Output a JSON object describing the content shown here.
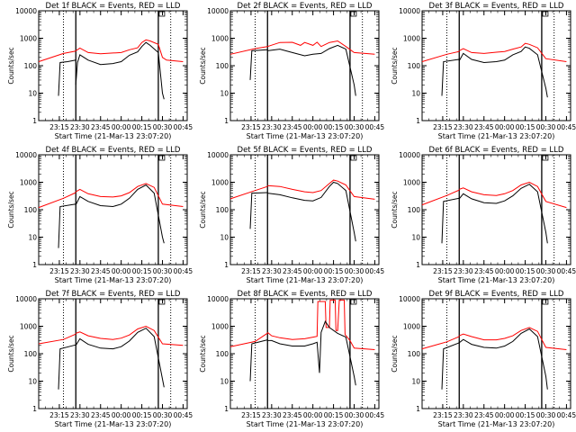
{
  "chart_data": {
    "type": "line",
    "x_ticks": [
      "23:15",
      "23:30",
      "23:45",
      "00:00",
      "00:15",
      "00:30",
      "00:45"
    ],
    "y_ticks": [
      "1",
      "10",
      "100",
      "1000",
      "10000"
    ],
    "ylabel": "Counts/sec",
    "xlabel": "Start Time (21-Mar-13 23:07:20)",
    "ylim": [
      1,
      10000
    ],
    "y_scale": "log",
    "panels": [
      {
        "title": "Det 1f BLACK = Events, RED = LLD",
        "red_series": [
          [
            23.45,
            350
          ],
          [
            23.5,
            440
          ],
          [
            23.6,
            300
          ],
          [
            23.75,
            270
          ],
          [
            23.9,
            290
          ],
          [
            24.0,
            300
          ],
          [
            24.1,
            380
          ],
          [
            24.2,
            450
          ],
          [
            24.25,
            700
          ],
          [
            24.3,
            870
          ],
          [
            24.35,
            800
          ],
          [
            24.45,
            600
          ],
          [
            24.5,
            200
          ],
          [
            24.55,
            160
          ],
          [
            24.75,
            140
          ]
        ],
        "black_series": [
          [
            23.45,
            20
          ],
          [
            23.47,
            130
          ],
          [
            23.5,
            250
          ],
          [
            23.6,
            160
          ],
          [
            23.75,
            110
          ],
          [
            23.9,
            120
          ],
          [
            24.0,
            140
          ],
          [
            24.1,
            240
          ],
          [
            24.2,
            320
          ],
          [
            24.25,
            500
          ],
          [
            24.3,
            700
          ],
          [
            24.35,
            550
          ],
          [
            24.45,
            300
          ],
          [
            24.5,
            10
          ],
          [
            24.52,
            6
          ]
        ],
        "red_start": [
          [
            23.0,
            140
          ],
          [
            23.3,
            280
          ],
          [
            23.45,
            340
          ]
        ],
        "black_start": [
          [
            23.24,
            8
          ],
          [
            23.26,
            130
          ],
          [
            23.35,
            140
          ],
          [
            23.45,
            160
          ]
        ]
      },
      {
        "title": "Det 2f BLACK = Events, RED = LLD",
        "red_series": [
          [
            23.45,
            500
          ],
          [
            23.6,
            700
          ],
          [
            23.75,
            710
          ],
          [
            23.85,
            550
          ],
          [
            23.9,
            700
          ],
          [
            24.0,
            550
          ],
          [
            24.05,
            720
          ],
          [
            24.1,
            500
          ],
          [
            24.2,
            700
          ],
          [
            24.3,
            800
          ],
          [
            24.4,
            500
          ],
          [
            24.5,
            300
          ],
          [
            24.75,
            260
          ]
        ],
        "black_series": [
          [
            23.45,
            350
          ],
          [
            23.6,
            400
          ],
          [
            23.75,
            300
          ],
          [
            23.9,
            230
          ],
          [
            24.0,
            260
          ],
          [
            24.1,
            280
          ],
          [
            24.2,
            420
          ],
          [
            24.3,
            550
          ],
          [
            24.4,
            400
          ],
          [
            24.5,
            20
          ],
          [
            24.52,
            8
          ]
        ],
        "red_start": [
          [
            23.0,
            260
          ],
          [
            23.3,
            420
          ],
          [
            23.45,
            500
          ]
        ],
        "black_start": [
          [
            23.24,
            30
          ],
          [
            23.26,
            350
          ],
          [
            23.45,
            380
          ]
        ]
      },
      {
        "title": "Det 3f BLACK = Events, RED = LLD",
        "red_series": [
          [
            23.45,
            350
          ],
          [
            23.5,
            420
          ],
          [
            23.6,
            300
          ],
          [
            23.75,
            280
          ],
          [
            23.9,
            310
          ],
          [
            24.0,
            330
          ],
          [
            24.1,
            400
          ],
          [
            24.2,
            480
          ],
          [
            24.25,
            650
          ],
          [
            24.3,
            600
          ],
          [
            24.4,
            450
          ],
          [
            24.5,
            180
          ],
          [
            24.75,
            140
          ]
        ],
        "black_series": [
          [
            23.45,
            150
          ],
          [
            23.5,
            280
          ],
          [
            23.6,
            170
          ],
          [
            23.75,
            130
          ],
          [
            23.9,
            140
          ],
          [
            24.0,
            160
          ],
          [
            24.1,
            250
          ],
          [
            24.2,
            330
          ],
          [
            24.25,
            480
          ],
          [
            24.3,
            430
          ],
          [
            24.4,
            250
          ],
          [
            24.5,
            15
          ],
          [
            24.52,
            7
          ]
        ],
        "red_start": [
          [
            23.0,
            140
          ],
          [
            23.3,
            260
          ],
          [
            23.45,
            330
          ]
        ],
        "black_start": [
          [
            23.24,
            8
          ],
          [
            23.26,
            140
          ],
          [
            23.45,
            170
          ]
        ]
      },
      {
        "title": "Det 4f BLACK = Events, RED = LLD",
        "red_series": [
          [
            23.45,
            450
          ],
          [
            23.5,
            550
          ],
          [
            23.6,
            380
          ],
          [
            23.75,
            300
          ],
          [
            23.9,
            290
          ],
          [
            24.0,
            320
          ],
          [
            24.1,
            420
          ],
          [
            24.2,
            700
          ],
          [
            24.3,
            900
          ],
          [
            24.4,
            650
          ],
          [
            24.5,
            160
          ],
          [
            24.75,
            130
          ]
        ],
        "black_series": [
          [
            23.45,
            150
          ],
          [
            23.5,
            300
          ],
          [
            23.6,
            200
          ],
          [
            23.75,
            140
          ],
          [
            23.9,
            130
          ],
          [
            24.0,
            160
          ],
          [
            24.1,
            260
          ],
          [
            24.2,
            550
          ],
          [
            24.3,
            800
          ],
          [
            24.4,
            400
          ],
          [
            24.5,
            10
          ],
          [
            24.52,
            6
          ]
        ],
        "red_start": [
          [
            23.0,
            120
          ],
          [
            23.3,
            260
          ],
          [
            23.45,
            420
          ]
        ],
        "black_start": [
          [
            23.24,
            4
          ],
          [
            23.26,
            130
          ],
          [
            23.45,
            160
          ]
        ]
      },
      {
        "title": "Det 5f BLACK = Events, RED = LLD",
        "red_series": [
          [
            23.45,
            750
          ],
          [
            23.6,
            700
          ],
          [
            23.75,
            550
          ],
          [
            23.9,
            450
          ],
          [
            24.0,
            420
          ],
          [
            24.1,
            500
          ],
          [
            24.2,
            900
          ],
          [
            24.25,
            1200
          ],
          [
            24.3,
            1100
          ],
          [
            24.4,
            800
          ],
          [
            24.5,
            300
          ],
          [
            24.75,
            240
          ]
        ],
        "black_series": [
          [
            23.45,
            400
          ],
          [
            23.6,
            350
          ],
          [
            23.75,
            270
          ],
          [
            23.9,
            220
          ],
          [
            24.0,
            210
          ],
          [
            24.1,
            280
          ],
          [
            24.2,
            700
          ],
          [
            24.25,
            1000
          ],
          [
            24.3,
            900
          ],
          [
            24.4,
            500
          ],
          [
            24.5,
            15
          ],
          [
            24.52,
            7
          ]
        ],
        "red_start": [
          [
            23.0,
            250
          ],
          [
            23.3,
            500
          ],
          [
            23.45,
            700
          ]
        ],
        "black_start": [
          [
            23.24,
            20
          ],
          [
            23.26,
            400
          ],
          [
            23.45,
            420
          ]
        ]
      },
      {
        "title": "Det 6f BLACK = Events, RED = LLD",
        "red_series": [
          [
            23.45,
            550
          ],
          [
            23.5,
            620
          ],
          [
            23.6,
            450
          ],
          [
            23.75,
            350
          ],
          [
            23.9,
            330
          ],
          [
            24.0,
            380
          ],
          [
            24.1,
            500
          ],
          [
            24.2,
            800
          ],
          [
            24.3,
            1000
          ],
          [
            24.4,
            700
          ],
          [
            24.5,
            200
          ],
          [
            24.75,
            120
          ]
        ],
        "black_series": [
          [
            23.45,
            250
          ],
          [
            23.5,
            380
          ],
          [
            23.6,
            250
          ],
          [
            23.75,
            180
          ],
          [
            23.9,
            170
          ],
          [
            24.0,
            210
          ],
          [
            24.1,
            320
          ],
          [
            24.2,
            600
          ],
          [
            24.3,
            850
          ],
          [
            24.4,
            450
          ],
          [
            24.5,
            15
          ],
          [
            24.52,
            6
          ]
        ],
        "red_start": [
          [
            23.0,
            150
          ],
          [
            23.3,
            330
          ],
          [
            23.45,
            520
          ]
        ],
        "black_start": [
          [
            23.24,
            6
          ],
          [
            23.26,
            200
          ],
          [
            23.45,
            260
          ]
        ]
      },
      {
        "title": "Det 7f BLACK = Events, RED = LLD",
        "red_series": [
          [
            23.45,
            550
          ],
          [
            23.5,
            620
          ],
          [
            23.6,
            450
          ],
          [
            23.75,
            360
          ],
          [
            23.9,
            330
          ],
          [
            24.0,
            370
          ],
          [
            24.1,
            480
          ],
          [
            24.2,
            800
          ],
          [
            24.3,
            1000
          ],
          [
            24.4,
            700
          ],
          [
            24.5,
            230
          ],
          [
            24.75,
            200
          ]
        ],
        "black_series": [
          [
            23.45,
            200
          ],
          [
            23.5,
            350
          ],
          [
            23.6,
            220
          ],
          [
            23.75,
            160
          ],
          [
            23.9,
            150
          ],
          [
            24.0,
            180
          ],
          [
            24.1,
            290
          ],
          [
            24.2,
            600
          ],
          [
            24.3,
            850
          ],
          [
            24.4,
            420
          ],
          [
            24.5,
            12
          ],
          [
            24.52,
            6
          ]
        ],
        "red_start": [
          [
            23.0,
            230
          ],
          [
            23.3,
            330
          ],
          [
            23.45,
            520
          ]
        ],
        "black_start": [
          [
            23.24,
            5
          ],
          [
            23.26,
            150
          ],
          [
            23.45,
            210
          ]
        ]
      },
      {
        "title": "Det 8f BLACK = Events, RED = LLD",
        "red_series": [
          [
            23.45,
            600
          ],
          [
            23.5,
            450
          ],
          [
            23.6,
            380
          ],
          [
            23.75,
            330
          ],
          [
            23.9,
            350
          ],
          [
            24.0,
            400
          ],
          [
            24.05,
            430
          ],
          [
            24.06,
            8000
          ],
          [
            24.15,
            8000
          ],
          [
            24.16,
            900
          ],
          [
            24.2,
            900
          ],
          [
            24.21,
            9000
          ],
          [
            24.27,
            9000
          ],
          [
            24.28,
            700
          ],
          [
            24.3,
            700
          ],
          [
            24.32,
            9000
          ],
          [
            24.38,
            9000
          ],
          [
            24.39,
            500
          ],
          [
            24.45,
            300
          ],
          [
            24.5,
            160
          ],
          [
            24.75,
            140
          ]
        ],
        "black_series": [
          [
            23.45,
            300
          ],
          [
            23.5,
            300
          ],
          [
            23.6,
            230
          ],
          [
            23.75,
            190
          ],
          [
            23.9,
            190
          ],
          [
            24.0,
            230
          ],
          [
            24.05,
            260
          ],
          [
            24.08,
            20
          ],
          [
            24.1,
            600
          ],
          [
            24.15,
            1500
          ],
          [
            24.2,
            900
          ],
          [
            24.3,
            550
          ],
          [
            24.4,
            400
          ],
          [
            24.5,
            15
          ],
          [
            24.52,
            7
          ]
        ],
        "red_start": [
          [
            23.0,
            180
          ],
          [
            23.3,
            280
          ],
          [
            23.45,
            560
          ]
        ],
        "black_start": [
          [
            23.24,
            10
          ],
          [
            23.26,
            230
          ],
          [
            23.45,
            320
          ]
        ]
      },
      {
        "title": "Det 9f BLACK = Events, RED = LLD",
        "red_series": [
          [
            23.45,
            450
          ],
          [
            23.5,
            520
          ],
          [
            23.6,
            420
          ],
          [
            23.75,
            320
          ],
          [
            23.9,
            320
          ],
          [
            24.0,
            360
          ],
          [
            24.1,
            450
          ],
          [
            24.2,
            700
          ],
          [
            24.3,
            900
          ],
          [
            24.4,
            650
          ],
          [
            24.5,
            170
          ],
          [
            24.75,
            140
          ]
        ],
        "black_series": [
          [
            23.45,
            250
          ],
          [
            23.5,
            330
          ],
          [
            23.6,
            220
          ],
          [
            23.75,
            170
          ],
          [
            23.9,
            160
          ],
          [
            24.0,
            190
          ],
          [
            24.1,
            280
          ],
          [
            24.2,
            550
          ],
          [
            24.3,
            800
          ],
          [
            24.4,
            420
          ],
          [
            24.5,
            15
          ],
          [
            24.52,
            5
          ]
        ],
        "red_start": [
          [
            23.0,
            150
          ],
          [
            23.3,
            270
          ],
          [
            23.45,
            420
          ]
        ],
        "black_start": [
          [
            23.24,
            5
          ],
          [
            23.26,
            150
          ],
          [
            23.45,
            250
          ]
        ]
      }
    ],
    "vertical_lines": {
      "solid": [
        23.45,
        24.45
      ],
      "dotted": [
        23.3,
        24.6
      ]
    },
    "x_range_hours": [
      23.0,
      24.8
    ],
    "colors": {
      "events": "#000000",
      "lld": "#ff0000"
    }
  }
}
